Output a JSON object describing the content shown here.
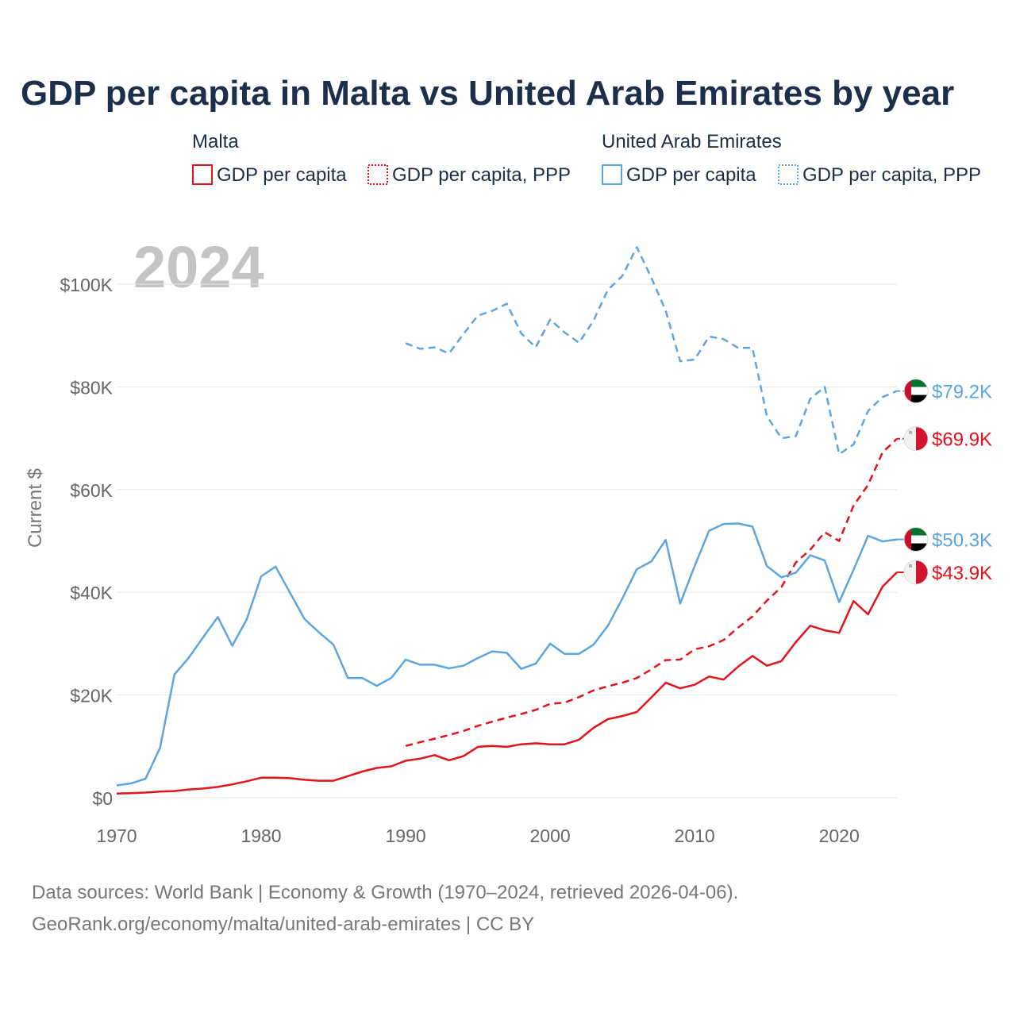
{
  "chart_data": {
    "type": "line",
    "title": "GDP per capita in Malta vs United Arab Emirates by year",
    "year_label": "2024",
    "ylabel": "Current $",
    "xlabel": "",
    "xlim": [
      1970,
      2024
    ],
    "ylim": [
      0,
      100000
    ],
    "x_ticks": [
      1970,
      1980,
      1990,
      2000,
      2010,
      2020
    ],
    "x_tick_labels": [
      "1970",
      "1980",
      "1990",
      "2000",
      "2010",
      "2020"
    ],
    "y_ticks": [
      0,
      20000,
      40000,
      60000,
      80000,
      100000
    ],
    "y_tick_labels": [
      "$0",
      "$20K",
      "$40K",
      "$60K",
      "$80K",
      "$100K"
    ],
    "grid": true,
    "legend": {
      "position": "top",
      "groups": [
        {
          "name": "Malta",
          "items": [
            "GDP per capita",
            "GDP per capita, PPP"
          ]
        },
        {
          "name": "United Arab Emirates",
          "items": [
            "GDP per capita",
            "GDP per capita, PPP"
          ]
        }
      ]
    },
    "series": [
      {
        "name": "Malta GDP per capita",
        "country": "Malta",
        "color": "#e3131b",
        "style": "solid",
        "end_label": "$43.9K",
        "x": [
          1970,
          1971,
          1972,
          1973,
          1974,
          1975,
          1976,
          1977,
          1978,
          1979,
          1980,
          1981,
          1982,
          1983,
          1984,
          1985,
          1986,
          1987,
          1988,
          1989,
          1990,
          1991,
          1992,
          1993,
          1994,
          1995,
          1996,
          1997,
          1998,
          1999,
          2000,
          2001,
          2002,
          2003,
          2004,
          2005,
          2006,
          2007,
          2008,
          2009,
          2010,
          2011,
          2012,
          2013,
          2014,
          2015,
          2016,
          2017,
          2018,
          2019,
          2020,
          2021,
          2022,
          2023,
          2024
        ],
        "values": [
          800,
          900,
          1000,
          1200,
          1300,
          1600,
          1800,
          2100,
          2600,
          3200,
          3900,
          3900,
          3800,
          3500,
          3300,
          3300,
          4200,
          5100,
          5800,
          6100,
          7200,
          7600,
          8300,
          7300,
          8100,
          9900,
          10100,
          9900,
          10400,
          10600,
          10400,
          10400,
          11300,
          13600,
          15300,
          15900,
          16700,
          19500,
          22400,
          21300,
          22000,
          23600,
          23000,
          25500,
          27600,
          25700,
          26600,
          30300,
          33500,
          32600,
          32100,
          38300,
          35700,
          41100,
          43900
        ]
      },
      {
        "name": "Malta GDP per capita, PPP",
        "country": "Malta",
        "color": "#e3131b",
        "style": "dashed",
        "end_label": "$69.9K",
        "x": [
          1990,
          1991,
          1992,
          1993,
          1994,
          1995,
          1996,
          1997,
          1998,
          1999,
          2000,
          2001,
          2002,
          2003,
          2004,
          2005,
          2006,
          2007,
          2008,
          2009,
          2010,
          2011,
          2012,
          2013,
          2014,
          2015,
          2016,
          2017,
          2018,
          2019,
          2020,
          2021,
          2022,
          2023,
          2024
        ],
        "values": [
          10100,
          10800,
          11500,
          12200,
          13000,
          14000,
          14800,
          15600,
          16300,
          17100,
          18300,
          18500,
          19600,
          20900,
          21700,
          22400,
          23300,
          25000,
          26800,
          26900,
          28900,
          29500,
          30700,
          33100,
          35300,
          38400,
          41000,
          45800,
          48300,
          51700,
          50000,
          56900,
          60900,
          67200,
          69900
        ]
      },
      {
        "name": "United Arab Emirates GDP per capita",
        "country": "United Arab Emirates",
        "color": "#5da5e0",
        "style": "solid",
        "end_label": "$50.3K",
        "x": [
          1970,
          1971,
          1972,
          1973,
          1974,
          1975,
          1976,
          1977,
          1978,
          1979,
          1980,
          1981,
          1982,
          1983,
          1984,
          1985,
          1986,
          1987,
          1988,
          1989,
          1990,
          1991,
          1992,
          1993,
          1994,
          1995,
          1996,
          1997,
          1998,
          1999,
          2000,
          2001,
          2002,
          2003,
          2004,
          2005,
          2006,
          2007,
          2008,
          2009,
          2010,
          2011,
          2012,
          2013,
          2014,
          2015,
          2016,
          2017,
          2018,
          2019,
          2020,
          2021,
          2022,
          2023,
          2024
        ],
        "values": [
          2400,
          2800,
          3700,
          9700,
          24000,
          27300,
          31300,
          35200,
          29600,
          34700,
          43100,
          45000,
          39900,
          34800,
          32200,
          29800,
          23300,
          23300,
          21800,
          23300,
          26900,
          25900,
          25900,
          25200,
          25700,
          27200,
          28500,
          28200,
          25100,
          26100,
          30000,
          28000,
          28000,
          29800,
          33500,
          38800,
          44500,
          46000,
          50200,
          37800,
          45100,
          52000,
          53300,
          53400,
          52800,
          45100,
          42900,
          43800,
          47200,
          46200,
          38100,
          44400,
          51000,
          49900,
          50300
        ]
      },
      {
        "name": "United Arab Emirates GDP per capita, PPP",
        "country": "United Arab Emirates",
        "color": "#5da5e0",
        "style": "dashed",
        "end_label": "$79.2K",
        "x": [
          1990,
          1991,
          1992,
          1993,
          1994,
          1995,
          1996,
          1997,
          1998,
          1999,
          2000,
          2001,
          2002,
          2003,
          2004,
          2005,
          2006,
          2007,
          2008,
          2009,
          2010,
          2011,
          2012,
          2013,
          2014,
          2015,
          2016,
          2017,
          2018,
          2019,
          2020,
          2021,
          2022,
          2023,
          2024
        ],
        "values": [
          88500,
          87400,
          87700,
          86500,
          90300,
          93900,
          94800,
          96200,
          90400,
          87700,
          93100,
          90600,
          88600,
          92900,
          98900,
          101600,
          107200,
          101300,
          94800,
          85000,
          85300,
          89800,
          89300,
          87600,
          87600,
          74300,
          70000,
          70400,
          77700,
          80000,
          66900,
          68800,
          75300,
          78000,
          79200
        ]
      }
    ]
  },
  "footer": {
    "line1": "Data sources: World Bank | Economy & Growth (1970–2024, retrieved 2026-04-06).",
    "line2": "GeoRank.org/economy/malta/united-arab-emirates | CC BY"
  },
  "colors": {
    "malta": "#e3131b",
    "uae": "#5da5e0",
    "title": "#1b2f4b",
    "grid": "#e6e6e6",
    "tick": "#666666"
  },
  "icons": {
    "malta_flag": "malta-flag-icon",
    "uae_flag": "uae-flag-icon"
  }
}
